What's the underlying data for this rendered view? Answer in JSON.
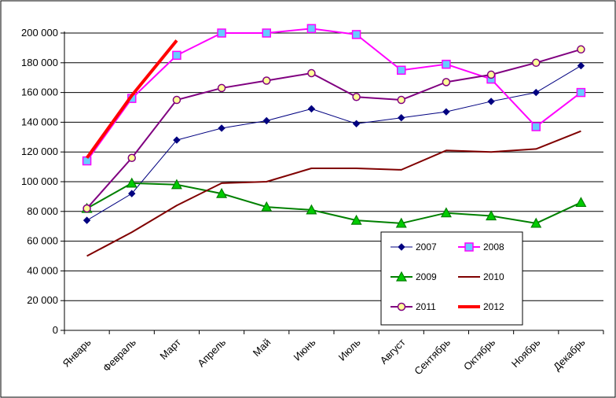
{
  "chart_data": {
    "type": "line",
    "title": "",
    "xlabel": "",
    "ylabel": "",
    "ylim": [
      0,
      200000
    ],
    "yticks": [
      0,
      20000,
      40000,
      60000,
      80000,
      100000,
      120000,
      140000,
      160000,
      180000,
      200000
    ],
    "ytick_labels": [
      "0",
      "20 000",
      "40 000",
      "60 000",
      "80 000",
      "100 000",
      "120 000",
      "140 000",
      "160 000",
      "180 000",
      "200 000"
    ],
    "grid": "horizontal",
    "legend_position": "bottom-right",
    "categories": [
      "Январь",
      "Февраль",
      "Март",
      "Апрель",
      "Май",
      "Июнь",
      "Июль",
      "Август",
      "Сентябрь",
      "Октябрь",
      "Ноябрь",
      "Декабрь"
    ],
    "series": [
      {
        "name": "2007",
        "color": "#000080",
        "marker": "diamond",
        "line_width": 1,
        "values": [
          74000,
          92000,
          128000,
          136000,
          141000,
          149000,
          139000,
          143000,
          147000,
          154000,
          160000,
          178000
        ]
      },
      {
        "name": "2008",
        "color": "#ff00ff",
        "marker": "square",
        "marker_fill": "#66ccff",
        "line_width": 2,
        "values": [
          114000,
          156000,
          185000,
          200000,
          200000,
          203000,
          199000,
          175000,
          179000,
          169000,
          137000,
          160000
        ]
      },
      {
        "name": "2009",
        "color": "#008000",
        "marker": "triangle",
        "marker_fill": "#00cc00",
        "line_width": 2,
        "values": [
          82000,
          99000,
          98000,
          92000,
          83000,
          81000,
          74000,
          72000,
          79000,
          77000,
          72000,
          86000
        ]
      },
      {
        "name": "2010",
        "color": "#800000",
        "marker": "none",
        "line_width": 2,
        "values": [
          50000,
          66000,
          84000,
          99000,
          100000,
          109000,
          109000,
          108000,
          121000,
          120000,
          122000,
          134000
        ]
      },
      {
        "name": "2011",
        "color": "#800080",
        "marker": "circle",
        "marker_fill": "#ffff99",
        "line_width": 2,
        "values": [
          82000,
          116000,
          155000,
          163000,
          168000,
          173000,
          157000,
          155000,
          167000,
          172000,
          180000,
          189000
        ]
      },
      {
        "name": "2012",
        "color": "#ff0000",
        "marker": "none",
        "line_width": 4,
        "values": [
          116000,
          158000,
          195000,
          null,
          null,
          null,
          null,
          null,
          null,
          null,
          null,
          null
        ]
      }
    ]
  }
}
